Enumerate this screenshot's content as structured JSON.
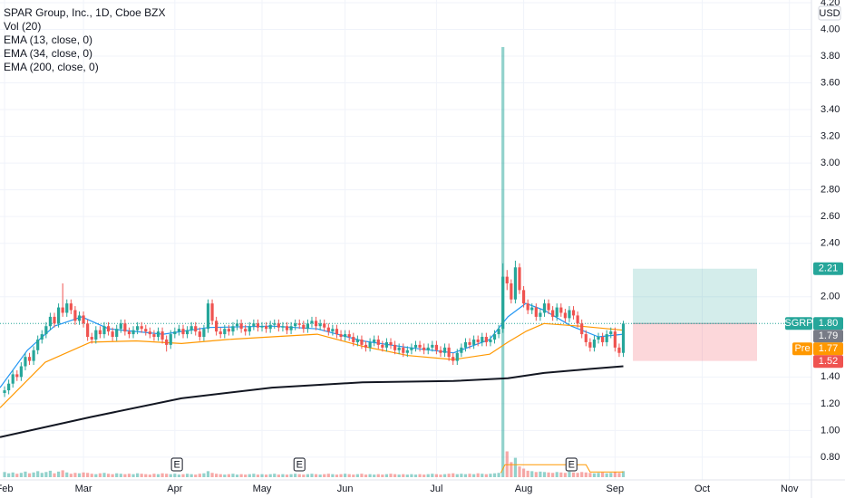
{
  "chart_data": {
    "type": "candlestick",
    "title": "SPAR Group, Inc., 1D, Cboe BZX",
    "indicators": [
      "Vol (20)",
      "EMA (13, close, 0)",
      "EMA (34, close, 0)",
      "EMA (200, close, 0)"
    ],
    "currency": "USD",
    "up_color": "#26a69a",
    "down_color": "#ef5350",
    "xlim": [
      -1.1,
      194.3
    ],
    "ylim": [
      0.63,
      4.22
    ],
    "xticks": [
      {
        "value": 0,
        "label": "Feb"
      },
      {
        "value": 19,
        "label": "Mar"
      },
      {
        "value": 41,
        "label": "Apr"
      },
      {
        "value": 62,
        "label": "May"
      },
      {
        "value": 82,
        "label": "Jun"
      },
      {
        "value": 104,
        "label": "Jul"
      },
      {
        "value": 125,
        "label": "Aug"
      },
      {
        "value": 147,
        "label": "Sep"
      },
      {
        "value": 168,
        "label": "Oct"
      },
      {
        "value": 189,
        "label": "Nov"
      }
    ],
    "yticks": [
      {
        "value": 0.8,
        "label": "0.80"
      },
      {
        "value": 1,
        "label": "1.00"
      },
      {
        "value": 1.2,
        "label": "1.20"
      },
      {
        "value": 1.4,
        "label": "1.40"
      },
      {
        "value": 2,
        "label": "2.00"
      },
      {
        "value": 2.4,
        "label": "2.40"
      },
      {
        "value": 2.6,
        "label": "2.60"
      },
      {
        "value": 2.8,
        "label": "2.80"
      },
      {
        "value": 3,
        "label": "3.00"
      },
      {
        "value": 3.2,
        "label": "3.20"
      },
      {
        "value": 3.4,
        "label": "3.40"
      },
      {
        "value": 3.6,
        "label": "3.60"
      },
      {
        "value": 3.8,
        "label": "3.80"
      },
      {
        "value": 4,
        "label": "4.00"
      },
      {
        "value": 4.2,
        "label": "4.20"
      }
    ],
    "open": [
      1.28,
      1.3,
      1.35,
      1.42,
      1.4,
      1.48,
      1.55,
      1.52,
      1.6,
      1.68,
      1.72,
      1.78,
      1.85,
      1.8,
      1.92,
      1.88,
      1.95,
      1.9,
      1.82,
      1.86,
      1.8,
      1.7,
      1.68,
      1.75,
      1.72,
      1.78,
      1.74,
      1.7,
      1.76,
      1.8,
      1.74,
      1.72,
      1.75,
      1.78,
      1.76,
      1.74,
      1.72,
      1.7,
      1.74,
      1.68,
      1.64,
      1.72,
      1.74,
      1.76,
      1.72,
      1.75,
      1.78,
      1.74,
      1.7,
      1.76,
      1.95,
      1.82,
      1.74,
      1.72,
      1.76,
      1.74,
      1.78,
      1.8,
      1.76,
      1.74,
      1.78,
      1.8,
      1.77,
      1.78,
      1.76,
      1.79,
      1.8,
      1.77,
      1.78,
      1.75,
      1.78,
      1.8,
      1.79,
      1.76,
      1.8,
      1.82,
      1.78,
      1.8,
      1.77,
      1.74,
      1.76,
      1.72,
      1.7,
      1.72,
      1.7,
      1.66,
      1.68,
      1.64,
      1.62,
      1.66,
      1.68,
      1.64,
      1.62,
      1.66,
      1.64,
      1.6,
      1.62,
      1.58,
      1.6,
      1.62,
      1.64,
      1.62,
      1.6,
      1.62,
      1.64,
      1.6,
      1.58,
      1.62,
      1.55,
      1.52,
      1.58,
      1.62,
      1.66,
      1.64,
      1.68,
      1.66,
      1.7,
      1.66,
      1.68,
      1.72,
      1.76,
      2.15,
      2.1,
      1.98,
      2.22,
      2.05,
      1.95,
      1.9,
      1.92,
      1.85,
      1.88,
      1.95,
      1.9,
      1.85,
      1.92,
      1.88,
      1.84,
      1.9,
      1.86,
      1.8,
      1.72,
      1.66,
      1.62,
      1.68,
      1.7,
      1.66,
      1.72,
      1.74,
      1.62,
      1.58
    ],
    "high": [
      1.33,
      1.38,
      1.45,
      1.45,
      1.51,
      1.58,
      1.58,
      1.63,
      1.71,
      1.75,
      1.81,
      1.88,
      1.88,
      1.95,
      2.1,
      1.98,
      1.98,
      1.93,
      1.89,
      1.89,
      1.83,
      1.73,
      1.78,
      1.78,
      1.81,
      1.81,
      1.77,
      1.79,
      1.83,
      1.83,
      1.77,
      1.78,
      1.81,
      1.81,
      1.79,
      1.77,
      1.75,
      1.77,
      1.77,
      1.71,
      1.75,
      1.77,
      1.79,
      1.79,
      1.78,
      1.81,
      1.81,
      1.77,
      1.79,
      1.98,
      1.98,
      1.85,
      1.77,
      1.79,
      1.79,
      1.81,
      1.83,
      1.83,
      1.79,
      1.81,
      1.83,
      1.83,
      1.81,
      1.81,
      1.82,
      1.83,
      1.83,
      1.81,
      1.81,
      1.81,
      1.83,
      1.83,
      1.82,
      1.83,
      1.85,
      1.85,
      1.83,
      1.83,
      1.8,
      1.79,
      1.79,
      1.75,
      1.75,
      1.75,
      1.73,
      1.71,
      1.71,
      1.67,
      1.69,
      1.71,
      1.71,
      1.67,
      1.69,
      1.69,
      1.67,
      1.65,
      1.65,
      1.63,
      1.65,
      1.67,
      1.67,
      1.65,
      1.65,
      1.67,
      1.67,
      1.63,
      1.65,
      1.65,
      1.58,
      1.61,
      1.65,
      1.69,
      1.69,
      1.71,
      1.71,
      1.73,
      1.73,
      1.71,
      1.75,
      1.79,
      2.25,
      2.2,
      2.13,
      2.27,
      2.25,
      2.08,
      1.98,
      1.95,
      1.95,
      1.91,
      1.98,
      1.98,
      1.93,
      1.95,
      1.95,
      1.91,
      1.93,
      1.93,
      1.89,
      1.83,
      1.75,
      1.69,
      1.71,
      1.73,
      1.73,
      1.75,
      1.77,
      1.77,
      1.65,
      1.82
    ],
    "low": [
      1.25,
      1.27,
      1.32,
      1.37,
      1.37,
      1.45,
      1.49,
      1.49,
      1.57,
      1.65,
      1.69,
      1.75,
      1.77,
      1.77,
      1.85,
      1.85,
      1.87,
      1.79,
      1.79,
      1.77,
      1.67,
      1.65,
      1.65,
      1.69,
      1.69,
      1.71,
      1.67,
      1.67,
      1.73,
      1.71,
      1.69,
      1.69,
      1.72,
      1.73,
      1.71,
      1.69,
      1.67,
      1.67,
      1.65,
      1.59,
      1.61,
      1.69,
      1.71,
      1.69,
      1.69,
      1.72,
      1.71,
      1.67,
      1.67,
      1.73,
      1.79,
      1.71,
      1.69,
      1.69,
      1.71,
      1.71,
      1.75,
      1.73,
      1.71,
      1.71,
      1.75,
      1.74,
      1.74,
      1.73,
      1.73,
      1.76,
      1.74,
      1.74,
      1.72,
      1.72,
      1.75,
      1.76,
      1.73,
      1.73,
      1.77,
      1.75,
      1.75,
      1.74,
      1.71,
      1.71,
      1.69,
      1.67,
      1.67,
      1.67,
      1.63,
      1.63,
      1.61,
      1.59,
      1.59,
      1.63,
      1.61,
      1.59,
      1.59,
      1.61,
      1.57,
      1.57,
      1.55,
      1.55,
      1.57,
      1.59,
      1.59,
      1.57,
      1.57,
      1.59,
      1.57,
      1.55,
      1.55,
      1.52,
      1.49,
      1.49,
      1.55,
      1.59,
      1.61,
      1.61,
      1.63,
      1.63,
      1.63,
      1.63,
      1.65,
      1.69,
      1.73,
      2.05,
      1.95,
      1.95,
      2.02,
      1.92,
      1.87,
      1.87,
      1.82,
      1.82,
      1.85,
      1.87,
      1.82,
      1.82,
      1.85,
      1.81,
      1.81,
      1.83,
      1.77,
      1.69,
      1.63,
      1.59,
      1.59,
      1.65,
      1.63,
      1.63,
      1.69,
      1.59,
      1.55,
      1.55
    ],
    "close": [
      1.3,
      1.35,
      1.42,
      1.4,
      1.48,
      1.55,
      1.52,
      1.6,
      1.68,
      1.72,
      1.78,
      1.85,
      1.8,
      1.92,
      1.88,
      1.95,
      1.9,
      1.82,
      1.86,
      1.8,
      1.7,
      1.68,
      1.75,
      1.72,
      1.78,
      1.74,
      1.7,
      1.76,
      1.8,
      1.74,
      1.72,
      1.75,
      1.78,
      1.76,
      1.74,
      1.72,
      1.7,
      1.74,
      1.68,
      1.64,
      1.72,
      1.74,
      1.76,
      1.72,
      1.75,
      1.78,
      1.74,
      1.7,
      1.76,
      1.95,
      1.82,
      1.74,
      1.72,
      1.76,
      1.74,
      1.78,
      1.8,
      1.76,
      1.74,
      1.78,
      1.8,
      1.77,
      1.78,
      1.76,
      1.79,
      1.8,
      1.77,
      1.78,
      1.75,
      1.78,
      1.8,
      1.79,
      1.76,
      1.8,
      1.82,
      1.78,
      1.8,
      1.77,
      1.74,
      1.76,
      1.72,
      1.7,
      1.72,
      1.7,
      1.66,
      1.68,
      1.64,
      1.62,
      1.66,
      1.68,
      1.64,
      1.62,
      1.66,
      1.64,
      1.6,
      1.62,
      1.58,
      1.6,
      1.62,
      1.64,
      1.62,
      1.6,
      1.62,
      1.64,
      1.6,
      1.58,
      1.62,
      1.55,
      1.52,
      1.58,
      1.62,
      1.66,
      1.64,
      1.68,
      1.66,
      1.7,
      1.66,
      1.68,
      1.72,
      1.76,
      2.15,
      2.1,
      1.98,
      2.22,
      2.05,
      1.95,
      1.9,
      1.92,
      1.85,
      1.88,
      1.95,
      1.9,
      1.85,
      1.92,
      1.88,
      1.84,
      1.9,
      1.86,
      1.8,
      1.72,
      1.66,
      1.62,
      1.68,
      1.7,
      1.66,
      1.72,
      1.74,
      1.62,
      1.58,
      1.8
    ],
    "volume": [
      1.2,
      0.9,
      1.1,
      0.8,
      1.0,
      1.3,
      0.9,
      1.1,
      1.4,
      1.0,
      1.2,
      1.5,
      0.9,
      1.3,
      1.6,
      1.1,
      0.8,
      1.0,
      0.9,
      1.1,
      1.0,
      0.8,
      0.7,
      0.9,
      1.0,
      0.8,
      0.7,
      0.9,
      0.8,
      0.7,
      0.8,
      0.7,
      0.9,
      0.8,
      0.7,
      0.6,
      0.8,
      0.7,
      0.9,
      0.8,
      0.7,
      0.8,
      0.6,
      0.7,
      0.8,
      0.7,
      0.6,
      0.8,
      0.9,
      1.4,
      1.0,
      0.8,
      0.7,
      0.6,
      0.7,
      0.8,
      0.6,
      0.7,
      0.6,
      0.7,
      0.8,
      0.6,
      0.7,
      0.6,
      0.7,
      0.8,
      0.6,
      0.7,
      0.6,
      0.7,
      0.8,
      0.7,
      0.6,
      0.7,
      0.8,
      0.7,
      0.6,
      0.7,
      0.8,
      0.7,
      0.6,
      0.7,
      0.8,
      0.7,
      0.6,
      0.7,
      0.8,
      0.6,
      0.7,
      0.6,
      0.7,
      0.6,
      0.7,
      0.8,
      0.7,
      0.6,
      0.7,
      0.6,
      0.7,
      0.6,
      0.7,
      0.6,
      0.7,
      0.8,
      0.7,
      0.6,
      0.7,
      0.8,
      0.9,
      0.7,
      0.8,
      0.7,
      0.8,
      0.7,
      0.9,
      0.8,
      0.7,
      0.8,
      0.9,
      1.0,
      100,
      6.0,
      3.5,
      4.5,
      2.5,
      2.0,
      1.5,
      1.4,
      1.2,
      1.3,
      1.2,
      1.1,
      1.0,
      1.2,
      1.1,
      1.0,
      1.3,
      1.1,
      1.0,
      1.2,
      1.1,
      1.0,
      0.9,
      1.0,
      1.1,
      0.9,
      1.0,
      1.2,
      1.0,
      1.4
    ],
    "volume_ylim": [
      0,
      100
    ],
    "volume_ma": {
      "color": "#ff9800",
      "x": [
        119.5,
        120.5,
        140,
        141,
        149
      ],
      "values": [
        1,
        2.9,
        2.9,
        1.2,
        1.2
      ]
    },
    "series": [
      {
        "name": "EMA (13, close, 0)",
        "color": "#2196f3",
        "x": [
          -1.1,
          5.5,
          12,
          18.6,
          25.1,
          38.2,
          49.1,
          64.4,
          75.3,
          86.2,
          97.2,
          108.1,
          116.8,
          121.2,
          125.5,
          129.9,
          136.5,
          143.0,
          149
        ],
        "values": [
          1.32,
          1.6,
          1.78,
          1.85,
          1.76,
          1.72,
          1.77,
          1.78,
          1.76,
          1.67,
          1.62,
          1.58,
          1.68,
          1.85,
          1.95,
          1.9,
          1.78,
          1.7,
          1.72
        ]
      },
      {
        "name": "EMA (34, close, 0)",
        "color": "#ff9800",
        "x": [
          -1.1,
          9.8,
          20.7,
          31.7,
          42.6,
          53.5,
          64.4,
          75.3,
          86.2,
          97.2,
          108.1,
          116.8,
          121.2,
          125.5,
          129.9,
          138.6,
          149
        ],
        "values": [
          1.17,
          1.51,
          1.66,
          1.67,
          1.65,
          1.68,
          1.7,
          1.72,
          1.63,
          1.56,
          1.53,
          1.57,
          1.66,
          1.74,
          1.8,
          1.78,
          1.75
        ]
      },
      {
        "name": "EMA (200, close, 0)",
        "color": "#131722",
        "x": [
          -1.1,
          20.7,
          42.6,
          64.4,
          86.2,
          108.1,
          121.2,
          129.9,
          140.8,
          149
        ],
        "values": [
          0.95,
          1.1,
          1.24,
          1.32,
          1.36,
          1.37,
          1.39,
          1.43,
          1.46,
          1.48
        ]
      }
    ],
    "events": [
      {
        "x": 41.5,
        "label": "E"
      },
      {
        "x": 71,
        "label": "E"
      },
      {
        "x": 136.5,
        "label": "E"
      }
    ],
    "position": {
      "x": [
        151.3,
        181.2
      ],
      "entry": 1.8,
      "target": 2.21,
      "stop": 1.52
    },
    "price_labels": [
      {
        "name": "SGRP",
        "value": 1.8,
        "value_label": "1.80",
        "color": "#26a69a"
      },
      {
        "value": 1.79,
        "color": "#787b86"
      },
      {
        "name": "Pre",
        "value": 1.77,
        "color": "#ff9800"
      },
      {
        "value": 1.52,
        "color": "#ef5350"
      },
      {
        "value": 2.21,
        "color": "#26a69a"
      }
    ]
  }
}
